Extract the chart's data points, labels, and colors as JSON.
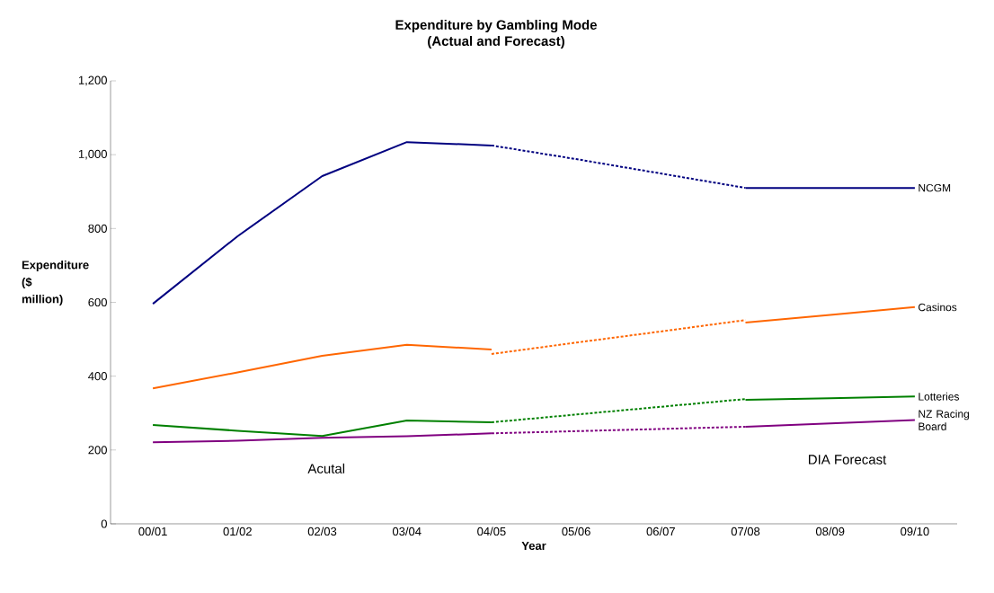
{
  "chart_data": {
    "type": "line",
    "title": "Expenditure by Gambling Mode",
    "subtitle": "(Actual and Forecast)",
    "xlabel": "Year",
    "ylabel": "Expenditure ($ million)",
    "categories": [
      "00/01",
      "01/02",
      "02/03",
      "03/04",
      "04/05",
      "05/06",
      "06/07",
      "07/08",
      "08/09",
      "09/10"
    ],
    "ylim": [
      0,
      1200
    ],
    "yticks": [
      0,
      200,
      400,
      600,
      800,
      {
        "value": 1000,
        "label": "1,000"
      },
      {
        "value": 1200,
        "label": "1,200"
      }
    ],
    "grid": false,
    "marker": "none",
    "series": [
      {
        "color": "#000080",
        "line_style": "solid",
        "values": [
          596,
          779,
          942,
          1034,
          1025,
          null,
          null,
          null,
          null,
          null
        ]
      },
      {
        "color": "#000080",
        "line_style": "dashed",
        "values": [
          null,
          null,
          null,
          null,
          1025,
          988,
          949,
          910,
          null,
          null
        ]
      },
      {
        "name": "NCGM",
        "color": "#000080",
        "line_style": "solid",
        "values": [
          null,
          null,
          null,
          null,
          null,
          null,
          null,
          910,
          910,
          910
        ]
      },
      {
        "color": "#ff6600",
        "line_style": "solid",
        "values": [
          367,
          410,
          455,
          485,
          472,
          null,
          null,
          null,
          null,
          null
        ]
      },
      {
        "color": "#ff6600",
        "line_style": "dashed",
        "values": [
          null,
          null,
          null,
          null,
          460,
          491,
          521,
          552,
          null,
          null
        ]
      },
      {
        "name": "Casinos",
        "color": "#ff6600",
        "line_style": "solid",
        "values": [
          null,
          null,
          null,
          null,
          null,
          null,
          null,
          545,
          566,
          587
        ]
      },
      {
        "color": "#008000",
        "line_style": "solid",
        "values": [
          268,
          252,
          238,
          280,
          275,
          null,
          null,
          null,
          null,
          null
        ]
      },
      {
        "color": "#008000",
        "line_style": "dashed",
        "values": [
          null,
          null,
          null,
          null,
          275,
          296,
          317,
          338,
          null,
          null
        ]
      },
      {
        "name": "Lotteries",
        "color": "#008000",
        "line_style": "solid",
        "values": [
          null,
          null,
          null,
          null,
          null,
          null,
          null,
          336,
          340,
          345
        ]
      },
      {
        "color": "#800080",
        "line_style": "solid",
        "values": [
          221,
          225,
          233,
          237,
          245,
          null,
          null,
          null,
          null,
          null
        ]
      },
      {
        "color": "#800080",
        "line_style": "dashed",
        "values": [
          null,
          null,
          null,
          null,
          245,
          251,
          257,
          263,
          null,
          null
        ]
      },
      {
        "name": "NZ Racing Board",
        "color": "#800080",
        "line_style": "solid",
        "values": [
          null,
          null,
          null,
          null,
          null,
          null,
          null,
          263,
          272,
          281
        ]
      }
    ],
    "annotations": [
      "Acutal",
      "DIA Forecast"
    ]
  }
}
